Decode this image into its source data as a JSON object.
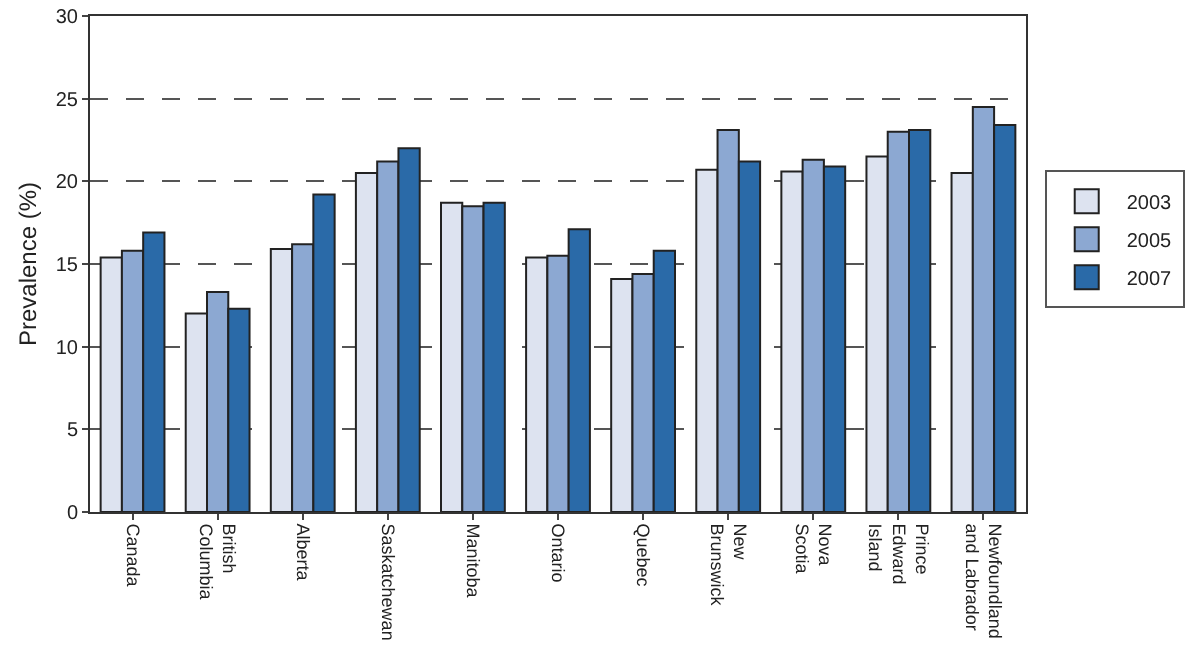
{
  "chart_data": {
    "type": "bar",
    "ylabel": "Prevalence (%)",
    "categories": [
      "Canada",
      "British\nColumbia",
      "Alberta",
      "Saskatchewan",
      "Manitoba",
      "Ontario",
      "Quebec",
      "New\nBrunswick",
      "Nova\nScotia",
      "Prince\nEdward\nIsland",
      "Newfoundland\nand Labrador"
    ],
    "series": [
      {
        "name": "2003",
        "color": "#dde3f0",
        "values": [
          15.4,
          12.0,
          15.9,
          20.5,
          18.7,
          15.4,
          14.1,
          20.7,
          20.6,
          21.5,
          20.5
        ]
      },
      {
        "name": "2005",
        "color": "#8ca8d2",
        "values": [
          15.8,
          13.3,
          16.2,
          21.2,
          18.5,
          15.5,
          14.4,
          23.1,
          21.3,
          23.0,
          24.5
        ]
      },
      {
        "name": "2007",
        "color": "#2a6aa8",
        "values": [
          16.9,
          12.3,
          19.2,
          22.0,
          18.7,
          17.1,
          15.8,
          21.2,
          20.9,
          23.1,
          23.4
        ]
      }
    ],
    "ylim": [
      0,
      30
    ],
    "yticks": [
      0,
      5,
      10,
      15,
      20,
      25,
      30
    ],
    "grid": "y",
    "legend": "right",
    "line_style": "dashed"
  }
}
